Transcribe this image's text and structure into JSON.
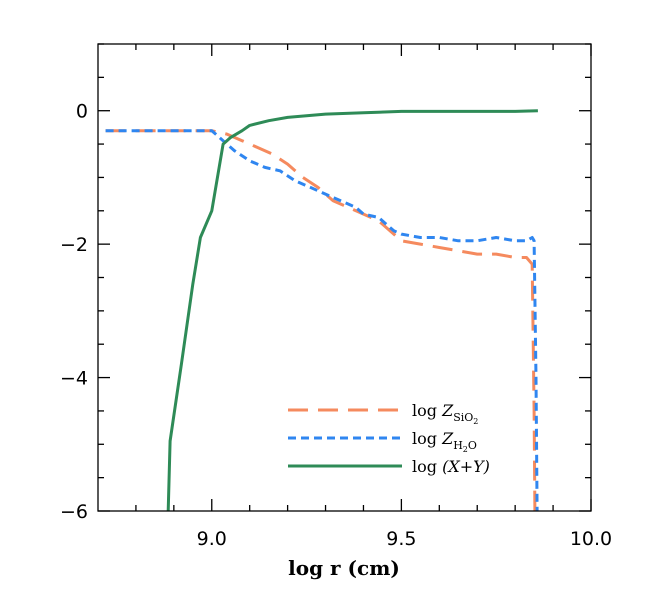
{
  "chart_data": {
    "type": "line",
    "title": "",
    "xlabel": "log r (cm)",
    "ylabel": "",
    "xlim": [
      8.7,
      10.0
    ],
    "ylim": [
      -6.0,
      1.0
    ],
    "xticks": [
      9.0,
      9.5,
      10.0
    ],
    "xtick_labels": [
      "9.0",
      "9.5",
      "10.0"
    ],
    "yticks": [
      -6,
      -4,
      -2,
      0
    ],
    "ytick_labels": [
      "−6",
      "−4",
      "−2",
      "0"
    ],
    "grid": false,
    "legend_position": "bottom-right",
    "series": [
      {
        "name": "log Z_SiO2",
        "legend_label": {
          "prefix": "log ",
          "italic": "Z",
          "sub": "SiO",
          "subsub": "2"
        },
        "color": "#f58a5e",
        "style": "long-dash",
        "x": [
          8.72,
          9.0,
          9.04,
          9.08,
          9.12,
          9.16,
          9.2,
          9.24,
          9.28,
          9.32,
          9.36,
          9.4,
          9.44,
          9.48,
          9.5,
          9.55,
          9.6,
          9.65,
          9.7,
          9.75,
          9.8,
          9.83,
          9.845,
          9.85,
          9.852
        ],
        "y": [
          -0.3,
          -0.3,
          -0.35,
          -0.45,
          -0.55,
          -0.65,
          -0.8,
          -1.0,
          -1.15,
          -1.35,
          -1.45,
          -1.55,
          -1.65,
          -1.85,
          -1.95,
          -2.0,
          -2.05,
          -2.1,
          -2.15,
          -2.15,
          -2.2,
          -2.2,
          -2.3,
          -4.5,
          -6.0
        ]
      },
      {
        "name": "log Z_H2O",
        "legend_label": {
          "prefix": "log ",
          "italic": "Z",
          "sub": "H",
          "subsub": "2",
          "subtail": "O"
        },
        "color": "#2f86f0",
        "style": "short-dash",
        "x": [
          8.72,
          9.0,
          9.03,
          9.06,
          9.1,
          9.14,
          9.18,
          9.22,
          9.26,
          9.3,
          9.34,
          9.38,
          9.4,
          9.44,
          9.48,
          9.5,
          9.55,
          9.6,
          9.65,
          9.7,
          9.75,
          9.8,
          9.83,
          9.845,
          9.85,
          9.855,
          9.858
        ],
        "y": [
          -0.3,
          -0.3,
          -0.45,
          -0.6,
          -0.75,
          -0.85,
          -0.9,
          -1.05,
          -1.15,
          -1.25,
          -1.35,
          -1.45,
          -1.55,
          -1.6,
          -1.8,
          -1.85,
          -1.9,
          -1.9,
          -1.95,
          -1.95,
          -1.9,
          -1.95,
          -1.95,
          -1.9,
          -1.95,
          -4.0,
          -6.0
        ]
      },
      {
        "name": "log (X+Y)",
        "legend_label": {
          "prefix": "log ",
          "italic": "(X+Y)"
        },
        "color": "#2e8b57",
        "style": "solid",
        "x": [
          8.885,
          8.89,
          8.92,
          8.95,
          8.97,
          9.0,
          9.03,
          9.05,
          9.08,
          9.1,
          9.15,
          9.2,
          9.3,
          9.4,
          9.5,
          9.6,
          9.7,
          9.8,
          9.86
        ],
        "y": [
          -6.0,
          -4.95,
          -3.8,
          -2.6,
          -1.9,
          -1.5,
          -0.5,
          -0.4,
          -0.3,
          -0.22,
          -0.15,
          -0.1,
          -0.05,
          -0.03,
          -0.01,
          -0.01,
          -0.01,
          -0.01,
          0.0
        ]
      }
    ]
  }
}
